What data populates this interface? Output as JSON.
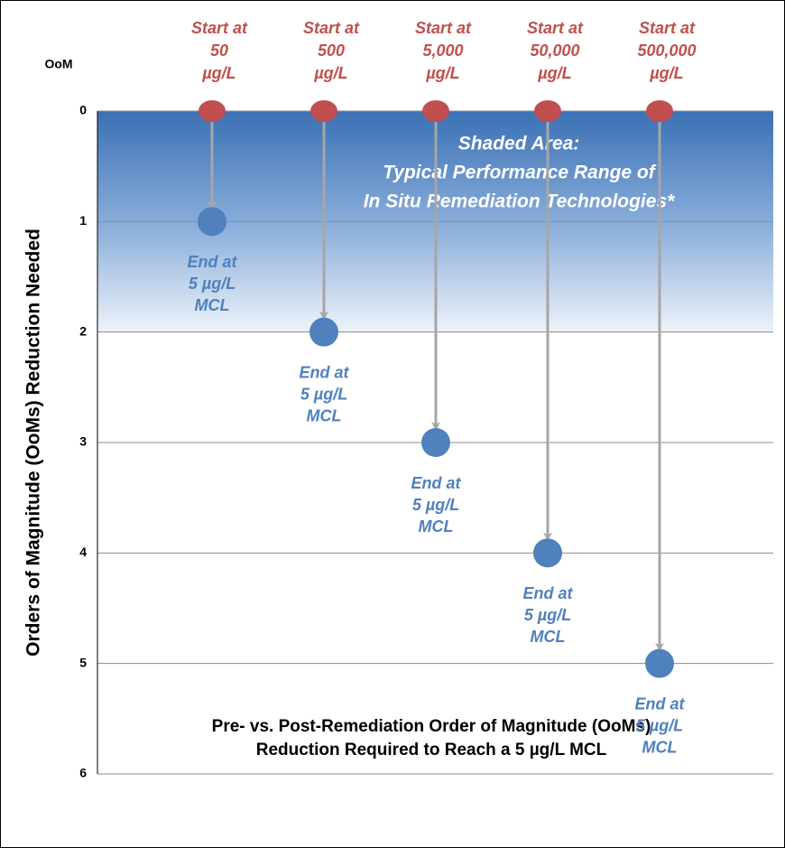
{
  "chart_data": {
    "type": "dumbbell",
    "y_unit_label": "OoM",
    "ylabel": "Orders of Magnitude (OoMs) Reduction Needed",
    "xlabel": [
      "Pre- vs. Post-Remediation Order of Magnitude (OoMs)",
      "Reduction Required to Reach a 5 µg/L MCL"
    ],
    "ylim": [
      0,
      6
    ],
    "yticks": [
      0,
      1,
      2,
      3,
      4,
      5,
      6
    ],
    "y_inverted": true,
    "grid": true,
    "shaded_range": [
      0,
      2
    ],
    "shaded_label": [
      "Shaded Area:",
      "Typical Performance Range of",
      "In Situ Remediation Technologies*"
    ],
    "start_points": {
      "color": "#c0504d",
      "values": [
        0,
        0,
        0,
        0,
        0
      ],
      "labels": [
        [
          "Start at",
          "50",
          "µg/L"
        ],
        [
          "Start at",
          "500",
          "µg/L"
        ],
        [
          "Start at",
          "5,000",
          "µg/L"
        ],
        [
          "Start at",
          "50,000",
          "µg/L"
        ],
        [
          "Start at",
          "500,000",
          "µg/L"
        ]
      ]
    },
    "end_points": {
      "color": "#4f81bd",
      "values": [
        1,
        2,
        3,
        4,
        5
      ],
      "labels": [
        [
          "End at",
          "5 µg/L",
          "MCL"
        ],
        [
          "End at",
          "5 µg/L",
          "MCL"
        ],
        [
          "End at",
          "5 µg/L",
          "MCL"
        ],
        [
          "End at",
          "5 µg/L",
          "MCL"
        ],
        [
          "End at",
          "5 µg/L",
          "MCL"
        ]
      ]
    }
  }
}
